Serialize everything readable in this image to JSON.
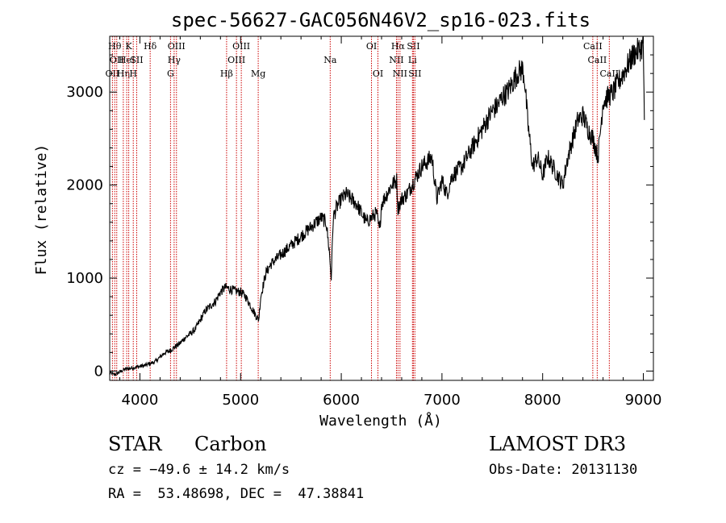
{
  "chart_data": {
    "type": "line",
    "title": "spec-56627-GAC056N46V2_sp16-023.fits",
    "xlabel": "Wavelength (Å)",
    "ylabel": "Flux (relative)",
    "xlim": [
      3700,
      9100
    ],
    "ylim": [
      -100,
      3600
    ],
    "x_ticks": [
      4000,
      5000,
      6000,
      7000,
      8000,
      9000
    ],
    "y_ticks": [
      0,
      1000,
      2000,
      3000
    ],
    "grid": false,
    "series": [
      {
        "name": "flux",
        "x": [
          3700,
          3750,
          3800,
          3850,
          3900,
          3950,
          4000,
          4050,
          4100,
          4150,
          4200,
          4250,
          4300,
          4350,
          4400,
          4450,
          4500,
          4550,
          4600,
          4650,
          4700,
          4750,
          4800,
          4850,
          4900,
          4950,
          5000,
          5050,
          5100,
          5150,
          5180,
          5200,
          5250,
          5300,
          5350,
          5400,
          5450,
          5500,
          5550,
          5600,
          5650,
          5700,
          5750,
          5800,
          5850,
          5880,
          5900,
          5920,
          5950,
          6000,
          6050,
          6100,
          6150,
          6200,
          6250,
          6300,
          6350,
          6380,
          6400,
          6450,
          6500,
          6550,
          6563,
          6600,
          6650,
          6700,
          6750,
          6800,
          6850,
          6900,
          6950,
          7000,
          7050,
          7100,
          7150,
          7200,
          7250,
          7300,
          7350,
          7400,
          7450,
          7500,
          7550,
          7600,
          7650,
          7700,
          7750,
          7800,
          7820,
          7850,
          7900,
          7950,
          8000,
          8050,
          8100,
          8150,
          8200,
          8250,
          8300,
          8350,
          8400,
          8450,
          8500,
          8550,
          8600,
          8650,
          8700,
          8750,
          8800,
          8850,
          8900,
          8950,
          9000,
          9010
        ],
        "y": [
          -20,
          -40,
          -10,
          20,
          30,
          40,
          50,
          60,
          80,
          100,
          150,
          200,
          220,
          260,
          300,
          360,
          400,
          450,
          550,
          650,
          700,
          750,
          850,
          900,
          880,
          860,
          850,
          800,
          700,
          600,
          550,
          800,
          1050,
          1150,
          1200,
          1250,
          1300,
          1350,
          1400,
          1450,
          1500,
          1550,
          1600,
          1650,
          1600,
          1300,
          1000,
          1650,
          1750,
          1850,
          1900,
          1850,
          1800,
          1700,
          1600,
          1650,
          1700,
          1500,
          1800,
          1900,
          2000,
          2050,
          1750,
          1850,
          1900,
          2000,
          2100,
          2200,
          2250,
          2300,
          1850,
          2050,
          1900,
          2100,
          2150,
          2200,
          2300,
          2400,
          2500,
          2600,
          2700,
          2800,
          2850,
          2950,
          3000,
          3100,
          3200,
          3250,
          3150,
          2700,
          2200,
          2300,
          2100,
          2300,
          2200,
          2100,
          2000,
          2300,
          2500,
          2700,
          2750,
          2600,
          2500,
          2300,
          2900,
          2950,
          3000,
          3100,
          3200,
          3300,
          3400,
          3450,
          3500,
          2700
        ]
      }
    ],
    "lines": [
      {
        "wl": 3727,
        "label": "OII",
        "row": 2
      },
      {
        "wl": 3750,
        "label": "Hθ",
        "row": 0
      },
      {
        "wl": 3770,
        "label": "OII",
        "row": 1
      },
      {
        "wl": 3835,
        "label": "Hη",
        "row": 2
      },
      {
        "wl": 3869,
        "label": "HeI",
        "row": 1
      },
      {
        "wl": 3889,
        "label": "K",
        "row": 0
      },
      {
        "wl": 3934,
        "label": "H",
        "row": 2
      },
      {
        "wl": 3968,
        "label": "SII",
        "row": 1
      },
      {
        "wl": 4102,
        "label": "Hδ",
        "row": 0
      },
      {
        "wl": 4304,
        "label": "G",
        "row": 2
      },
      {
        "wl": 4340,
        "label": "Hγ",
        "row": 1
      },
      {
        "wl": 4363,
        "label": "OIII",
        "row": 0
      },
      {
        "wl": 4861,
        "label": "Hβ",
        "row": 2
      },
      {
        "wl": 4959,
        "label": "OIII",
        "row": 1
      },
      {
        "wl": 5007,
        "label": "OIII",
        "row": 0
      },
      {
        "wl": 5175,
        "label": "Mg",
        "row": 2
      },
      {
        "wl": 5890,
        "label": "Na",
        "row": 1
      },
      {
        "wl": 6300,
        "label": "OI",
        "row": 0
      },
      {
        "wl": 6364,
        "label": "OI",
        "row": 2
      },
      {
        "wl": 6548,
        "label": "NII",
        "row": 1
      },
      {
        "wl": 6563,
        "label": "Hα",
        "row": 0
      },
      {
        "wl": 6583,
        "label": "NII",
        "row": 2
      },
      {
        "wl": 6707,
        "label": "Li",
        "row": 1
      },
      {
        "wl": 6716,
        "label": "SII",
        "row": 0
      },
      {
        "wl": 6731,
        "label": "SII",
        "row": 2
      },
      {
        "wl": 8498,
        "label": "CaII",
        "row": 0
      },
      {
        "wl": 8542,
        "label": "CaII",
        "row": 1
      },
      {
        "wl": 8662,
        "label": "CaII",
        "row": 2
      }
    ]
  },
  "info": {
    "class_label": "STAR",
    "subclass": "Carbon",
    "survey": "LAMOST DR3",
    "cz": "cz = −49.6 ± 14.2 km/s",
    "obs_date": "Obs-Date: 20131130",
    "coords": "RA =  53.48698, DEC =  47.38841"
  },
  "colors": {
    "line_marker": "#cc0000",
    "spectrum": "#000000"
  }
}
